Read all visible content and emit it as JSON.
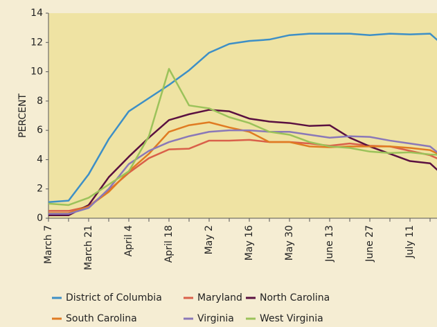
{
  "chart_data": {
    "type": "line",
    "y_label": "PERCENT",
    "categories": [
      "March 7",
      null,
      "March 21",
      null,
      "April 4",
      null,
      "April 18",
      null,
      "May 2",
      null,
      "May 16",
      null,
      "May 30",
      null,
      "June 13",
      null,
      "June 27",
      null,
      "July 11",
      null,
      null
    ],
    "ylim": [
      0,
      14
    ],
    "yticks": [
      0,
      2,
      4,
      6,
      8,
      10,
      12,
      14
    ],
    "series": [
      {
        "name": "District of Columbia",
        "color": "#3d8fc6",
        "values": [
          1.1,
          1.2,
          3.0,
          5.4,
          7.3,
          8.2,
          9.1,
          10.1,
          11.3,
          11.9,
          12.1,
          12.2,
          12.5,
          12.6,
          12.6,
          12.6,
          12.5,
          12.6,
          12.55,
          12.6,
          11.4
        ]
      },
      {
        "name": "Maryland",
        "color": "#d9604a",
        "values": [
          0.5,
          0.5,
          0.8,
          1.9,
          3.1,
          4.1,
          4.7,
          4.75,
          5.3,
          5.3,
          5.35,
          5.2,
          5.2,
          5.1,
          4.95,
          5.1,
          4.95,
          4.9,
          4.6,
          4.3,
          3.7
        ]
      },
      {
        "name": "North Carolina",
        "color": "#5a1040",
        "values": [
          0.2,
          0.2,
          0.9,
          2.8,
          4.2,
          5.5,
          6.7,
          7.1,
          7.4,
          7.3,
          6.8,
          6.6,
          6.5,
          6.3,
          6.35,
          5.5,
          4.9,
          4.4,
          3.9,
          3.75,
          2.5
        ]
      },
      {
        "name": "South Carolina",
        "color": "#e07b22",
        "values": [
          0.35,
          0.35,
          0.8,
          1.8,
          3.2,
          4.4,
          5.9,
          6.35,
          6.55,
          6.2,
          5.9,
          5.2,
          5.2,
          4.9,
          4.85,
          4.9,
          4.9,
          4.9,
          4.8,
          4.65,
          4.0
        ]
      },
      {
        "name": "Virginia",
        "color": "#8a78b8",
        "values": [
          0.3,
          0.3,
          0.7,
          2.0,
          3.7,
          4.6,
          5.2,
          5.6,
          5.9,
          6.0,
          6.0,
          5.9,
          5.9,
          5.7,
          5.5,
          5.6,
          5.55,
          5.3,
          5.1,
          4.9,
          3.8
        ]
      },
      {
        "name": "West Virginia",
        "color": "#9bc25a",
        "values": [
          1.0,
          0.9,
          1.4,
          2.3,
          3.2,
          5.6,
          10.2,
          7.7,
          7.5,
          6.9,
          6.5,
          5.9,
          5.7,
          5.2,
          4.9,
          4.8,
          4.55,
          4.45,
          4.5,
          4.35,
          4.3
        ]
      }
    ]
  }
}
